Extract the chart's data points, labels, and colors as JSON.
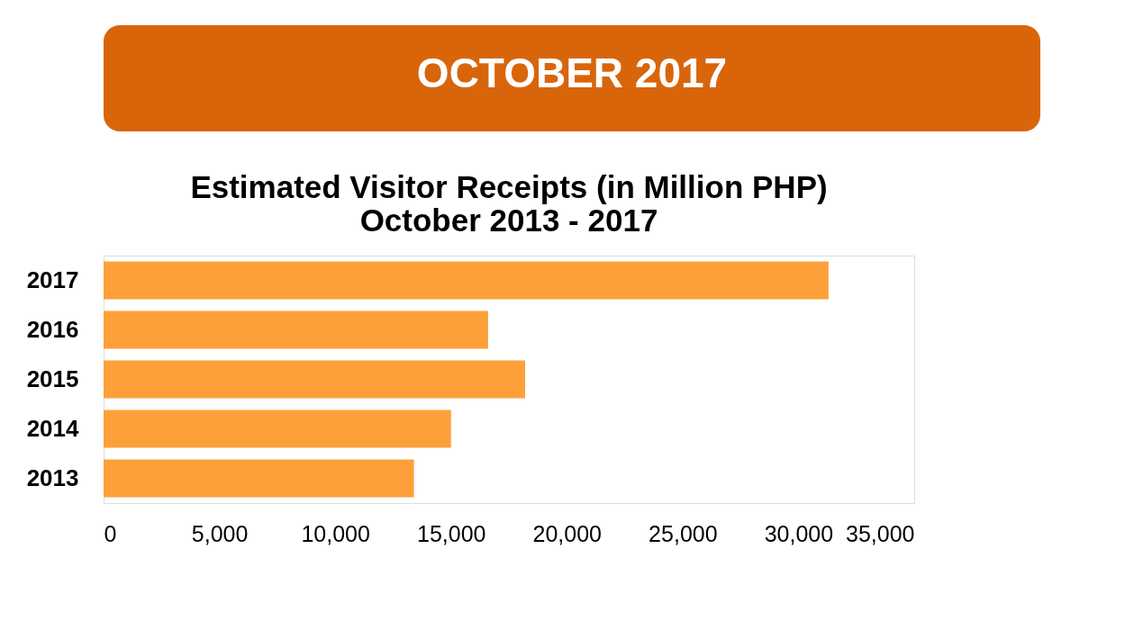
{
  "chart_data": {
    "type": "bar",
    "orientation": "horizontal",
    "title": "OCTOBER 2017",
    "subtitle": "Estimated Visitor Receipts (in Million PHP)\nOctober 2013 - 2017",
    "categories": [
      "2017",
      "2016",
      "2015",
      "2014",
      "2013"
    ],
    "values": [
      31300,
      16600,
      18200,
      15000,
      13400
    ],
    "color": "#fda03a",
    "xlim": [
      0,
      35000
    ],
    "xticks": [
      0,
      {
        "value": 5000,
        "label": "5,000"
      },
      {
        "value": 10000,
        "label": "10,000"
      },
      {
        "value": 15000,
        "label": "15,000"
      },
      {
        "value": 20000,
        "label": "20,000"
      },
      {
        "value": 25000,
        "label": "25,000"
      },
      {
        "value": 30000,
        "label": "30,000"
      },
      {
        "value": 35000,
        "label": "35,000"
      }
    ],
    "grid": false
  }
}
